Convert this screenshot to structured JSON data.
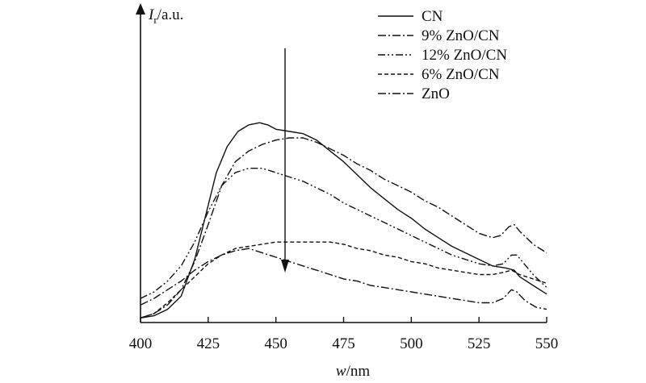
{
  "chart_data": {
    "type": "line",
    "title": "",
    "ylabel_main": "I",
    "ylabel_sub": "r",
    "ylabel_unit": "/a.u.",
    "xlabel_var": "w",
    "xlabel_unit": "/nm",
    "xlim": [
      400,
      550
    ],
    "ylim": [
      0,
      100
    ],
    "x_ticks": [
      400,
      425,
      450,
      475,
      500,
      525,
      550
    ],
    "x_tick_labels": [
      "400",
      "425",
      "450",
      "475",
      "500",
      "525",
      "550"
    ],
    "grid": false,
    "legend_position": "top-right",
    "annotation": "downward arrow near 453 nm indicating decreasing intensity",
    "series": [
      {
        "name": "CN",
        "dash": "solid",
        "points": [
          [
            400,
            1
          ],
          [
            405,
            2
          ],
          [
            410,
            5
          ],
          [
            415,
            11
          ],
          [
            420,
            28
          ],
          [
            424,
            48
          ],
          [
            428,
            68
          ],
          [
            432,
            80
          ],
          [
            436,
            87
          ],
          [
            440,
            90
          ],
          [
            444,
            91
          ],
          [
            447,
            90
          ],
          [
            450,
            88
          ],
          [
            455,
            87
          ],
          [
            460,
            86
          ],
          [
            465,
            83
          ],
          [
            470,
            78
          ],
          [
            475,
            73
          ],
          [
            480,
            67
          ],
          [
            485,
            61
          ],
          [
            490,
            56
          ],
          [
            495,
            51
          ],
          [
            500,
            47
          ],
          [
            505,
            42
          ],
          [
            510,
            38
          ],
          [
            515,
            34
          ],
          [
            520,
            31
          ],
          [
            525,
            28
          ],
          [
            530,
            25
          ],
          [
            535,
            24
          ],
          [
            538,
            23
          ],
          [
            540,
            20
          ],
          [
            545,
            16
          ],
          [
            550,
            12
          ]
        ]
      },
      {
        "name": "9% ZnO/CN",
        "dash": "dashdot",
        "points": [
          [
            400,
            1
          ],
          [
            405,
            3
          ],
          [
            410,
            7
          ],
          [
            415,
            14
          ],
          [
            420,
            27
          ],
          [
            425,
            44
          ],
          [
            430,
            62
          ],
          [
            435,
            73
          ],
          [
            440,
            78
          ],
          [
            445,
            81
          ],
          [
            450,
            83
          ],
          [
            455,
            84
          ],
          [
            460,
            84
          ],
          [
            465,
            82
          ],
          [
            470,
            79
          ],
          [
            475,
            76
          ],
          [
            480,
            72
          ],
          [
            485,
            69
          ],
          [
            490,
            65
          ],
          [
            495,
            62
          ],
          [
            500,
            59
          ],
          [
            505,
            55
          ],
          [
            510,
            52
          ],
          [
            515,
            48
          ],
          [
            520,
            44
          ],
          [
            525,
            40
          ],
          [
            530,
            38
          ],
          [
            533,
            39
          ],
          [
            536,
            43
          ],
          [
            538,
            44
          ],
          [
            540,
            41
          ],
          [
            545,
            35
          ],
          [
            550,
            31
          ]
        ]
      },
      {
        "name": "12% ZnO/CN",
        "dash": "dashdotdot",
        "points": [
          [
            400,
            10
          ],
          [
            405,
            13
          ],
          [
            410,
            18
          ],
          [
            415,
            25
          ],
          [
            420,
            36
          ],
          [
            425,
            50
          ],
          [
            430,
            62
          ],
          [
            435,
            68
          ],
          [
            440,
            70
          ],
          [
            445,
            70
          ],
          [
            450,
            68
          ],
          [
            455,
            66
          ],
          [
            460,
            64
          ],
          [
            465,
            61
          ],
          [
            470,
            58
          ],
          [
            475,
            54
          ],
          [
            480,
            51
          ],
          [
            485,
            48
          ],
          [
            490,
            45
          ],
          [
            495,
            42
          ],
          [
            500,
            39
          ],
          [
            505,
            36
          ],
          [
            510,
            33
          ],
          [
            515,
            30
          ],
          [
            520,
            28
          ],
          [
            525,
            26
          ],
          [
            530,
            25
          ],
          [
            534,
            26
          ],
          [
            537,
            30
          ],
          [
            539,
            30
          ],
          [
            541,
            27
          ],
          [
            545,
            21
          ],
          [
            550,
            15
          ]
        ]
      },
      {
        "name": "6% ZnO/CN",
        "dash": "dashed",
        "points": [
          [
            400,
            1
          ],
          [
            405,
            3
          ],
          [
            410,
            8
          ],
          [
            415,
            14
          ],
          [
            420,
            20
          ],
          [
            425,
            26
          ],
          [
            430,
            30
          ],
          [
            435,
            33
          ],
          [
            440,
            34
          ],
          [
            445,
            35
          ],
          [
            450,
            36
          ],
          [
            455,
            36
          ],
          [
            460,
            36
          ],
          [
            465,
            36
          ],
          [
            470,
            36
          ],
          [
            475,
            35
          ],
          [
            480,
            33
          ],
          [
            485,
            32
          ],
          [
            490,
            30
          ],
          [
            495,
            29
          ],
          [
            500,
            27
          ],
          [
            505,
            26
          ],
          [
            510,
            24
          ],
          [
            515,
            23
          ],
          [
            520,
            22
          ],
          [
            525,
            21
          ],
          [
            530,
            21
          ],
          [
            534,
            22
          ],
          [
            537,
            23
          ],
          [
            540,
            21
          ],
          [
            545,
            19
          ],
          [
            550,
            17
          ]
        ]
      },
      {
        "name": "ZnO",
        "dash": "dashdot",
        "points": [
          [
            400,
            7
          ],
          [
            405,
            10
          ],
          [
            410,
            14
          ],
          [
            415,
            18
          ],
          [
            420,
            23
          ],
          [
            425,
            27
          ],
          [
            430,
            30
          ],
          [
            435,
            32
          ],
          [
            440,
            33
          ],
          [
            445,
            31
          ],
          [
            450,
            29
          ],
          [
            455,
            27
          ],
          [
            460,
            25
          ],
          [
            465,
            23
          ],
          [
            470,
            21
          ],
          [
            475,
            19
          ],
          [
            480,
            18
          ],
          [
            485,
            16
          ],
          [
            490,
            15
          ],
          [
            495,
            14
          ],
          [
            500,
            13
          ],
          [
            505,
            12
          ],
          [
            510,
            11
          ],
          [
            515,
            10
          ],
          [
            520,
            9
          ],
          [
            525,
            8
          ],
          [
            530,
            8
          ],
          [
            534,
            10
          ],
          [
            537,
            14
          ],
          [
            539,
            13
          ],
          [
            542,
            9
          ],
          [
            546,
            6
          ],
          [
            550,
            5
          ]
        ]
      }
    ]
  }
}
